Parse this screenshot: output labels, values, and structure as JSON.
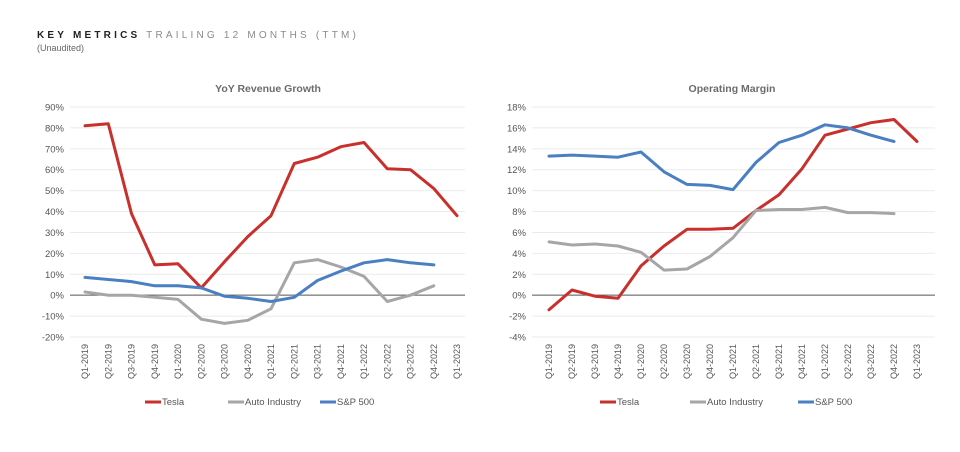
{
  "header": {
    "title_bold": "KEY METRICS",
    "title_light": "TRAILING 12 MONTHS (TTM)",
    "subtitle": "(Unaudited)"
  },
  "colors": {
    "tesla": "#C9302C",
    "auto": "#A6A6A6",
    "sp500": "#4A7FC1",
    "grid": "#EBEBEB",
    "zero": "#555555"
  },
  "chart_data": [
    {
      "type": "line",
      "title": "YoY Revenue Growth",
      "xlabel": "",
      "ylabel": "",
      "categories": [
        "Q1-2019",
        "Q2-2019",
        "Q3-2019",
        "Q4-2019",
        "Q1-2020",
        "Q2-2020",
        "Q3-2020",
        "Q4-2020",
        "Q1-2021",
        "Q2-2021",
        "Q3-2021",
        "Q4-2021",
        "Q1-2022",
        "Q2-2022",
        "Q3-2022",
        "Q4-2022",
        "Q1-2023"
      ],
      "ylim": [
        -20,
        90
      ],
      "yticks": [
        -20,
        -10,
        0,
        10,
        20,
        30,
        40,
        50,
        60,
        70,
        80,
        90
      ],
      "ytick_labels": [
        "-20%",
        "-10%",
        "0%",
        "10%",
        "20%",
        "30%",
        "40%",
        "50%",
        "60%",
        "70%",
        "80%",
        "90%"
      ],
      "grid": true,
      "legend_position": "bottom",
      "series": [
        {
          "name": "Tesla",
          "color_key": "tesla",
          "values": [
            81,
            82,
            39,
            14.5,
            15,
            3.5,
            16,
            28,
            38,
            63,
            66,
            71,
            73,
            60.5,
            60,
            51,
            38
          ]
        },
        {
          "name": "Auto Industry",
          "color_key": "auto",
          "values": [
            1.5,
            0,
            0,
            -1,
            -2,
            -11.5,
            -13.5,
            -12,
            -6.5,
            15.5,
            17,
            13.5,
            9,
            -3,
            0,
            4.5,
            null
          ]
        },
        {
          "name": "S&P 500",
          "color_key": "sp500",
          "values": [
            8.5,
            7.5,
            6.5,
            4.5,
            4.5,
            3.5,
            -0.5,
            -1.5,
            -3,
            -1,
            7,
            11.5,
            15.5,
            17,
            15.5,
            14.5,
            null
          ]
        }
      ]
    },
    {
      "type": "line",
      "title": "Operating Margin",
      "xlabel": "",
      "ylabel": "",
      "categories": [
        "Q1-2019",
        "Q2-2019",
        "Q3-2019",
        "Q4-2019",
        "Q1-2020",
        "Q2-2020",
        "Q3-2020",
        "Q4-2020",
        "Q1-2021",
        "Q2-2021",
        "Q3-2021",
        "Q4-2021",
        "Q1-2022",
        "Q2-2022",
        "Q3-2022",
        "Q4-2022",
        "Q1-2023"
      ],
      "ylim": [
        -4,
        18
      ],
      "yticks": [
        -4,
        -2,
        0,
        2,
        4,
        6,
        8,
        10,
        12,
        14,
        16,
        18
      ],
      "ytick_labels": [
        "-4%",
        "-2%",
        "0%",
        "2%",
        "4%",
        "6%",
        "8%",
        "10%",
        "12%",
        "14%",
        "16%",
        "18%"
      ],
      "grid": true,
      "legend_position": "bottom",
      "series": [
        {
          "name": "Tesla",
          "color_key": "tesla",
          "values": [
            -1.4,
            0.5,
            -0.1,
            -0.3,
            2.8,
            4.7,
            6.3,
            6.3,
            6.4,
            8.1,
            9.6,
            12.1,
            15.3,
            15.9,
            16.5,
            16.8,
            14.7
          ]
        },
        {
          "name": "Auto Industry",
          "color_key": "auto",
          "values": [
            5.1,
            4.8,
            4.9,
            4.7,
            4.1,
            2.4,
            2.5,
            3.7,
            5.5,
            8.1,
            8.2,
            8.2,
            8.4,
            7.9,
            7.9,
            7.8,
            null
          ]
        },
        {
          "name": "S&P 500",
          "color_key": "sp500",
          "values": [
            13.3,
            13.4,
            13.3,
            13.2,
            13.7,
            11.8,
            10.6,
            10.5,
            10.1,
            12.7,
            14.6,
            15.3,
            16.3,
            16.0,
            15.3,
            14.7,
            null
          ]
        }
      ]
    }
  ]
}
